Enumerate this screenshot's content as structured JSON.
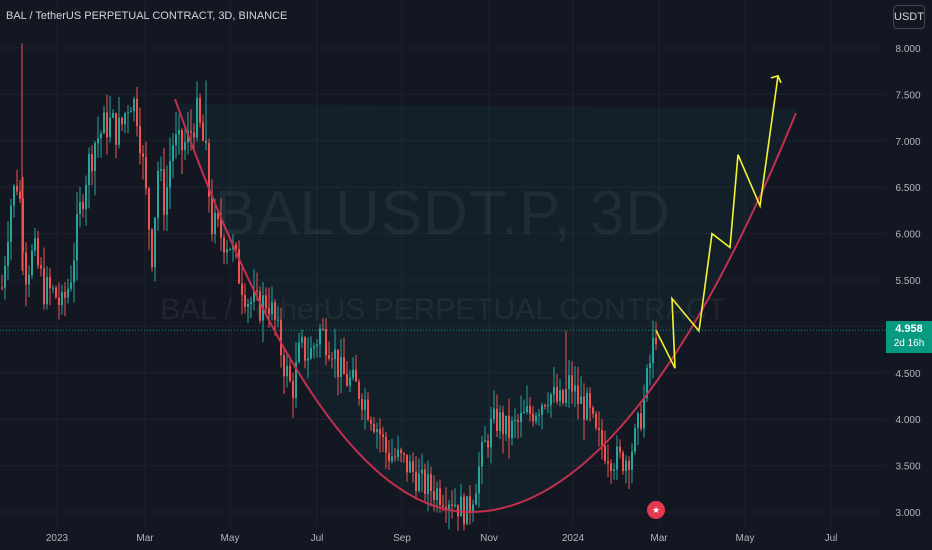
{
  "header": {
    "title": "BAL / TetherUS PERPETUAL CONTRACT, 3D, BINANCE"
  },
  "currency_button": "USDT",
  "watermark": {
    "symbol": "BALUSDT.P, 3D",
    "description": "BAL / TetherUS PERPETUAL CONTRACT"
  },
  "last_price": {
    "value": "4.958",
    "countdown": "2d 16h"
  },
  "event_icon": "us-flag-icon",
  "colors": {
    "background": "#131722",
    "up_candle": "#26a69a",
    "down_candle": "#ef5350",
    "cup_curve": "#c2304f",
    "projection": "#f5f531",
    "price_tag": "#089981",
    "zone_fill": "rgba(38,166,154,0.06)"
  },
  "chart_data": {
    "type": "candlestick",
    "title": "BAL / TetherUS PERPETUAL CONTRACT, 3D, BINANCE",
    "x_labels": [
      "2023",
      "Mar",
      "May",
      "Jul",
      "Sep",
      "Nov",
      "2024",
      "Mar",
      "May",
      "Jul"
    ],
    "y_ticks": [
      "3.000",
      "3.500",
      "4.000",
      "4.500",
      "5.000",
      "5.500",
      "6.000",
      "6.500",
      "7.000",
      "7.500",
      "8.000"
    ],
    "ylim": [
      2.95,
      8.2
    ],
    "grid": true,
    "price_path": [
      [
        0,
        5.2
      ],
      [
        10,
        6.3
      ],
      [
        18,
        6.6
      ],
      [
        26,
        5.6
      ],
      [
        34,
        5.8
      ],
      [
        44,
        5.4
      ],
      [
        55,
        5.35
      ],
      [
        62,
        5.2
      ],
      [
        70,
        5.5
      ],
      [
        78,
        6.1
      ],
      [
        85,
        6.6
      ],
      [
        95,
        7.0
      ],
      [
        108,
        7.2
      ],
      [
        120,
        7.1
      ],
      [
        130,
        7.5
      ],
      [
        138,
        7.3
      ],
      [
        145,
        6.5
      ],
      [
        152,
        5.8
      ],
      [
        158,
        6.7
      ],
      [
        165,
        6.3
      ],
      [
        172,
        7.0
      ],
      [
        180,
        6.9
      ],
      [
        188,
        7.0
      ],
      [
        196,
        7.3
      ],
      [
        205,
        6.9
      ],
      [
        212,
        6.1
      ],
      [
        220,
        6.0
      ],
      [
        230,
        5.9
      ],
      [
        238,
        5.6
      ],
      [
        248,
        5.3
      ],
      [
        258,
        5.2
      ],
      [
        268,
        5.3
      ],
      [
        276,
        5.0
      ],
      [
        284,
        4.6
      ],
      [
        292,
        4.3
      ],
      [
        300,
        4.75
      ],
      [
        310,
        4.7
      ],
      [
        320,
        4.95
      ],
      [
        332,
        4.8
      ],
      [
        340,
        4.5
      ],
      [
        350,
        4.4
      ],
      [
        360,
        4.3
      ],
      [
        370,
        4.1
      ],
      [
        380,
        3.85
      ],
      [
        386,
        3.65
      ],
      [
        394,
        3.6
      ],
      [
        402,
        3.55
      ],
      [
        412,
        3.45
      ],
      [
        422,
        3.3
      ],
      [
        432,
        3.25
      ],
      [
        442,
        3.2
      ],
      [
        452,
        3.15
      ],
      [
        460,
        3.05
      ],
      [
        468,
        3.0
      ],
      [
        474,
        3.25
      ],
      [
        482,
        3.6
      ],
      [
        490,
        3.9
      ],
      [
        498,
        4.0
      ],
      [
        508,
        3.85
      ],
      [
        518,
        3.95
      ],
      [
        528,
        4.05
      ],
      [
        538,
        4.15
      ],
      [
        548,
        4.3
      ],
      [
        556,
        4.2
      ],
      [
        562,
        4.15
      ],
      [
        570,
        4.4
      ],
      [
        578,
        4.2
      ],
      [
        588,
        4.1
      ],
      [
        596,
        3.8
      ],
      [
        604,
        3.7
      ],
      [
        612,
        3.6
      ],
      [
        620,
        3.55
      ],
      [
        628,
        3.6
      ],
      [
        636,
        3.8
      ],
      [
        644,
        4.2
      ],
      [
        650,
        4.6
      ],
      [
        656,
        4.958
      ]
    ],
    "cup_curve": [
      [
        -0.4,
        7.45
      ],
      [
        0.3,
        3.0
      ],
      [
        0.95,
        7.3
      ]
    ],
    "projection": [
      [
        4.958,
        4.55,
        5.3,
        4.95,
        6.0,
        5.85,
        6.85,
        6.3,
        7.7
      ]
    ],
    "last_value": 4.958
  }
}
